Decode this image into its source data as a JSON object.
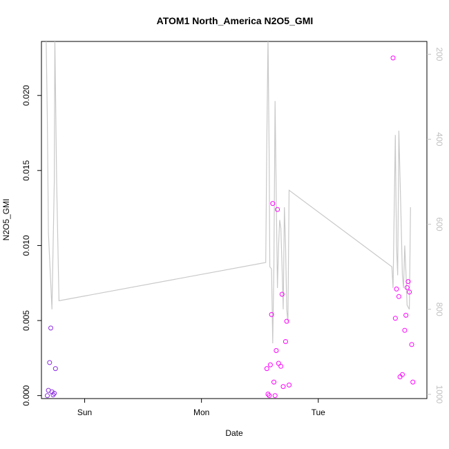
{
  "chart_data": {
    "type": "scatter",
    "title": "ATOM1 North_America N2O5_GMI",
    "xlabel": "Date",
    "ylabel": "N2O5_GMI",
    "x_ticks": [
      {
        "value": 1.0,
        "label": "Sun"
      },
      {
        "value": 2.0,
        "label": "Mon"
      },
      {
        "value": 3.0,
        "label": "Tue"
      }
    ],
    "y_ticks": [
      {
        "value": 0.0,
        "label": "0.000"
      },
      {
        "value": 0.005,
        "label": "0.005"
      },
      {
        "value": 0.01,
        "label": "0.010"
      },
      {
        "value": 0.015,
        "label": "0.015"
      },
      {
        "value": 0.02,
        "label": "0.020"
      }
    ],
    "y2_ticks": [
      {
        "value": 200,
        "label": "200"
      },
      {
        "value": 400,
        "label": "400"
      },
      {
        "value": 600,
        "label": "600"
      },
      {
        "value": 800,
        "label": "800"
      },
      {
        "value": 1000,
        "label": "1000"
      }
    ],
    "xlim": [
      0.63,
      3.93
    ],
    "ylim": [
      -0.0002,
      0.0236
    ],
    "y2lim": [
      1010,
      170
    ],
    "y2_reversed": true,
    "colors": {
      "pressure_line": "#c8c8c8",
      "point_low": "#8a2be2",
      "point_high": "#ff00ff",
      "right_axis": "#c0c0c0"
    },
    "series": [
      {
        "points": [
          [
            0.68,
            0.0
          ],
          [
            0.69,
            0.00035
          ],
          [
            0.7,
            0.0022
          ],
          [
            0.71,
            0.0045
          ],
          [
            0.72,
            0.00025
          ],
          [
            0.73,
            5e-05
          ],
          [
            0.74,
            0.00015
          ],
          [
            0.75,
            0.0018
          ],
          [
            2.56,
            0.0018
          ],
          [
            2.57,
            0.0001
          ],
          [
            2.58,
            0.0
          ],
          [
            2.59,
            0.00205
          ],
          [
            2.6,
            0.0054
          ],
          [
            2.61,
            0.0128
          ],
          [
            2.62,
            0.0009
          ],
          [
            2.63,
            0.0
          ],
          [
            2.64,
            0.003
          ],
          [
            2.65,
            0.0124
          ],
          [
            2.66,
            0.00215
          ],
          [
            2.68,
            0.00195
          ],
          [
            2.69,
            0.00675
          ],
          [
            2.7,
            0.0006
          ],
          [
            2.72,
            0.0036
          ],
          [
            2.73,
            0.00495
          ],
          [
            2.75,
            0.0007
          ],
          [
            3.64,
            0.0225
          ],
          [
            3.66,
            0.00515
          ],
          [
            3.67,
            0.0071
          ],
          [
            3.69,
            0.0066
          ],
          [
            3.7,
            0.00125
          ],
          [
            3.72,
            0.0014
          ],
          [
            3.74,
            0.00435
          ],
          [
            3.75,
            0.00535
          ],
          [
            3.76,
            0.0072
          ],
          [
            3.77,
            0.0076
          ],
          [
            3.78,
            0.0069
          ],
          [
            3.8,
            0.0034
          ],
          [
            3.81,
            0.0009
          ]
        ]
      },
      {
        "axis": "right",
        "points": [
          [
            0.67,
            160
          ],
          [
            0.68,
            350
          ],
          [
            0.69,
            620
          ],
          [
            0.71,
            740
          ],
          [
            0.72,
            800
          ],
          [
            0.74,
            500
          ],
          [
            0.745,
            160
          ],
          [
            0.76,
            500
          ],
          [
            0.77,
            640
          ],
          [
            0.78,
            780
          ],
          [
            2.55,
            690
          ],
          [
            2.56,
            400
          ],
          [
            2.57,
            160
          ],
          [
            2.58,
            450
          ],
          [
            2.585,
            700
          ],
          [
            2.6,
            705
          ],
          [
            2.61,
            880
          ],
          [
            2.62,
            700
          ],
          [
            2.63,
            310
          ],
          [
            2.65,
            750
          ],
          [
            2.66,
            650
          ],
          [
            2.67,
            590
          ],
          [
            2.68,
            610
          ],
          [
            2.69,
            700
          ],
          [
            2.7,
            800
          ],
          [
            2.71,
            560
          ],
          [
            2.72,
            650
          ],
          [
            2.73,
            800
          ],
          [
            2.74,
            830
          ],
          [
            2.75,
            520
          ],
          [
            3.63,
            700
          ],
          [
            3.64,
            750
          ],
          [
            3.66,
            390
          ],
          [
            3.67,
            650
          ],
          [
            3.68,
            720
          ],
          [
            3.69,
            380
          ],
          [
            3.71,
            600
          ],
          [
            3.72,
            720
          ],
          [
            3.73,
            750
          ],
          [
            3.74,
            650
          ],
          [
            3.75,
            710
          ],
          [
            3.76,
            790
          ],
          [
            3.78,
            800
          ],
          [
            3.79,
            560
          ]
        ]
      }
    ]
  }
}
